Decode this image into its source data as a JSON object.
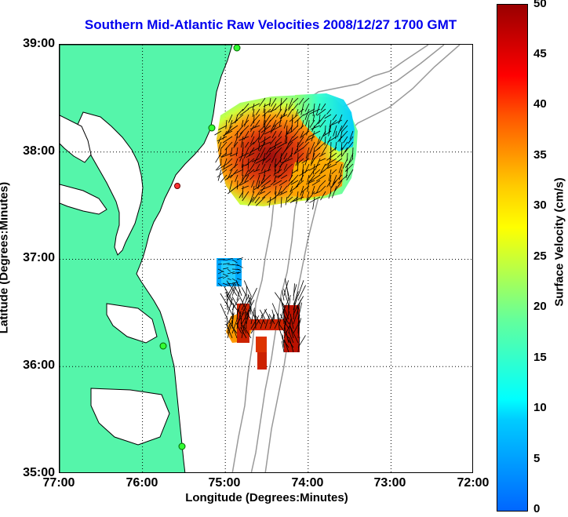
{
  "title": "Southern Mid-Atlantic Raw Velocities 2008/12/27 1700 GMT",
  "x_axis": {
    "label": "Longitude (Degrees:Minutes)",
    "ticks": [
      "77:00",
      "76:00",
      "75:00",
      "74:00",
      "73:00",
      "72:00"
    ]
  },
  "y_axis": {
    "label": "Latitude (Degrees:Minutes)",
    "ticks": [
      "39:00",
      "38:00",
      "37:00",
      "36:00",
      "35:00"
    ]
  },
  "colorbar": {
    "label": "Surface Velocity (cm/s)",
    "ticks": [
      "50",
      "45",
      "40",
      "35",
      "30",
      "25",
      "20",
      "15",
      "10",
      "5",
      "0"
    ],
    "range": [
      0,
      50
    ]
  },
  "colors": {
    "land": "#55f5aa",
    "coastline": "#000000",
    "bathymetry": "#999999",
    "grid": "#000000",
    "title": "#0000ee"
  }
}
